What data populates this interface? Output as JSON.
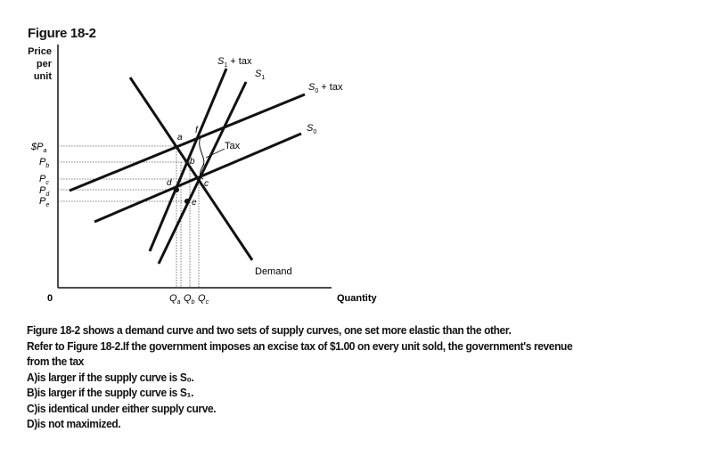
{
  "figure": {
    "title": "Figure 18-2",
    "y_axis_label_lines": [
      "Price",
      "per",
      "unit"
    ],
    "x_axis_label": "Quantity",
    "origin_label": "0",
    "price_labels": [
      "$P",
      "P",
      "P",
      "P",
      "P"
    ],
    "price_subscripts": [
      "a",
      "b",
      "c",
      "d",
      "e"
    ],
    "quantity_labels": [
      "Q",
      "Q",
      "Q"
    ],
    "quantity_subscripts": [
      "a",
      "b",
      "c"
    ],
    "curve_labels": {
      "s1_tax": "S",
      "s1_tax_sub": "1",
      "s1_tax_suffix": " + tax",
      "s1": "S",
      "s1_sub": "1",
      "s0_tax": "S",
      "s0_tax_sub": "0",
      "s0_tax_suffix": " + tax",
      "s0": "S",
      "s0_sub": "0",
      "demand": "Demand"
    },
    "point_labels": [
      "a",
      "b",
      "c",
      "d",
      "e",
      "f"
    ],
    "tax_label": "Tax"
  },
  "question": {
    "stem_line1": "Figure 18-2 shows a demand curve and two sets of supply curves, one set more elastic than the other.",
    "stem_line2": "Refer to Figure 18-2.If the government imposes an excise tax of $1.00 on every unit sold, the government's revenue",
    "stem_line3": "from the tax",
    "option_a": "A)is larger if the supply curve is S₀.",
    "option_b": "B)is larger if the supply curve is S₁.",
    "option_c": "C)is identical under either supply curve.",
    "option_d": "D)is not maximized."
  }
}
